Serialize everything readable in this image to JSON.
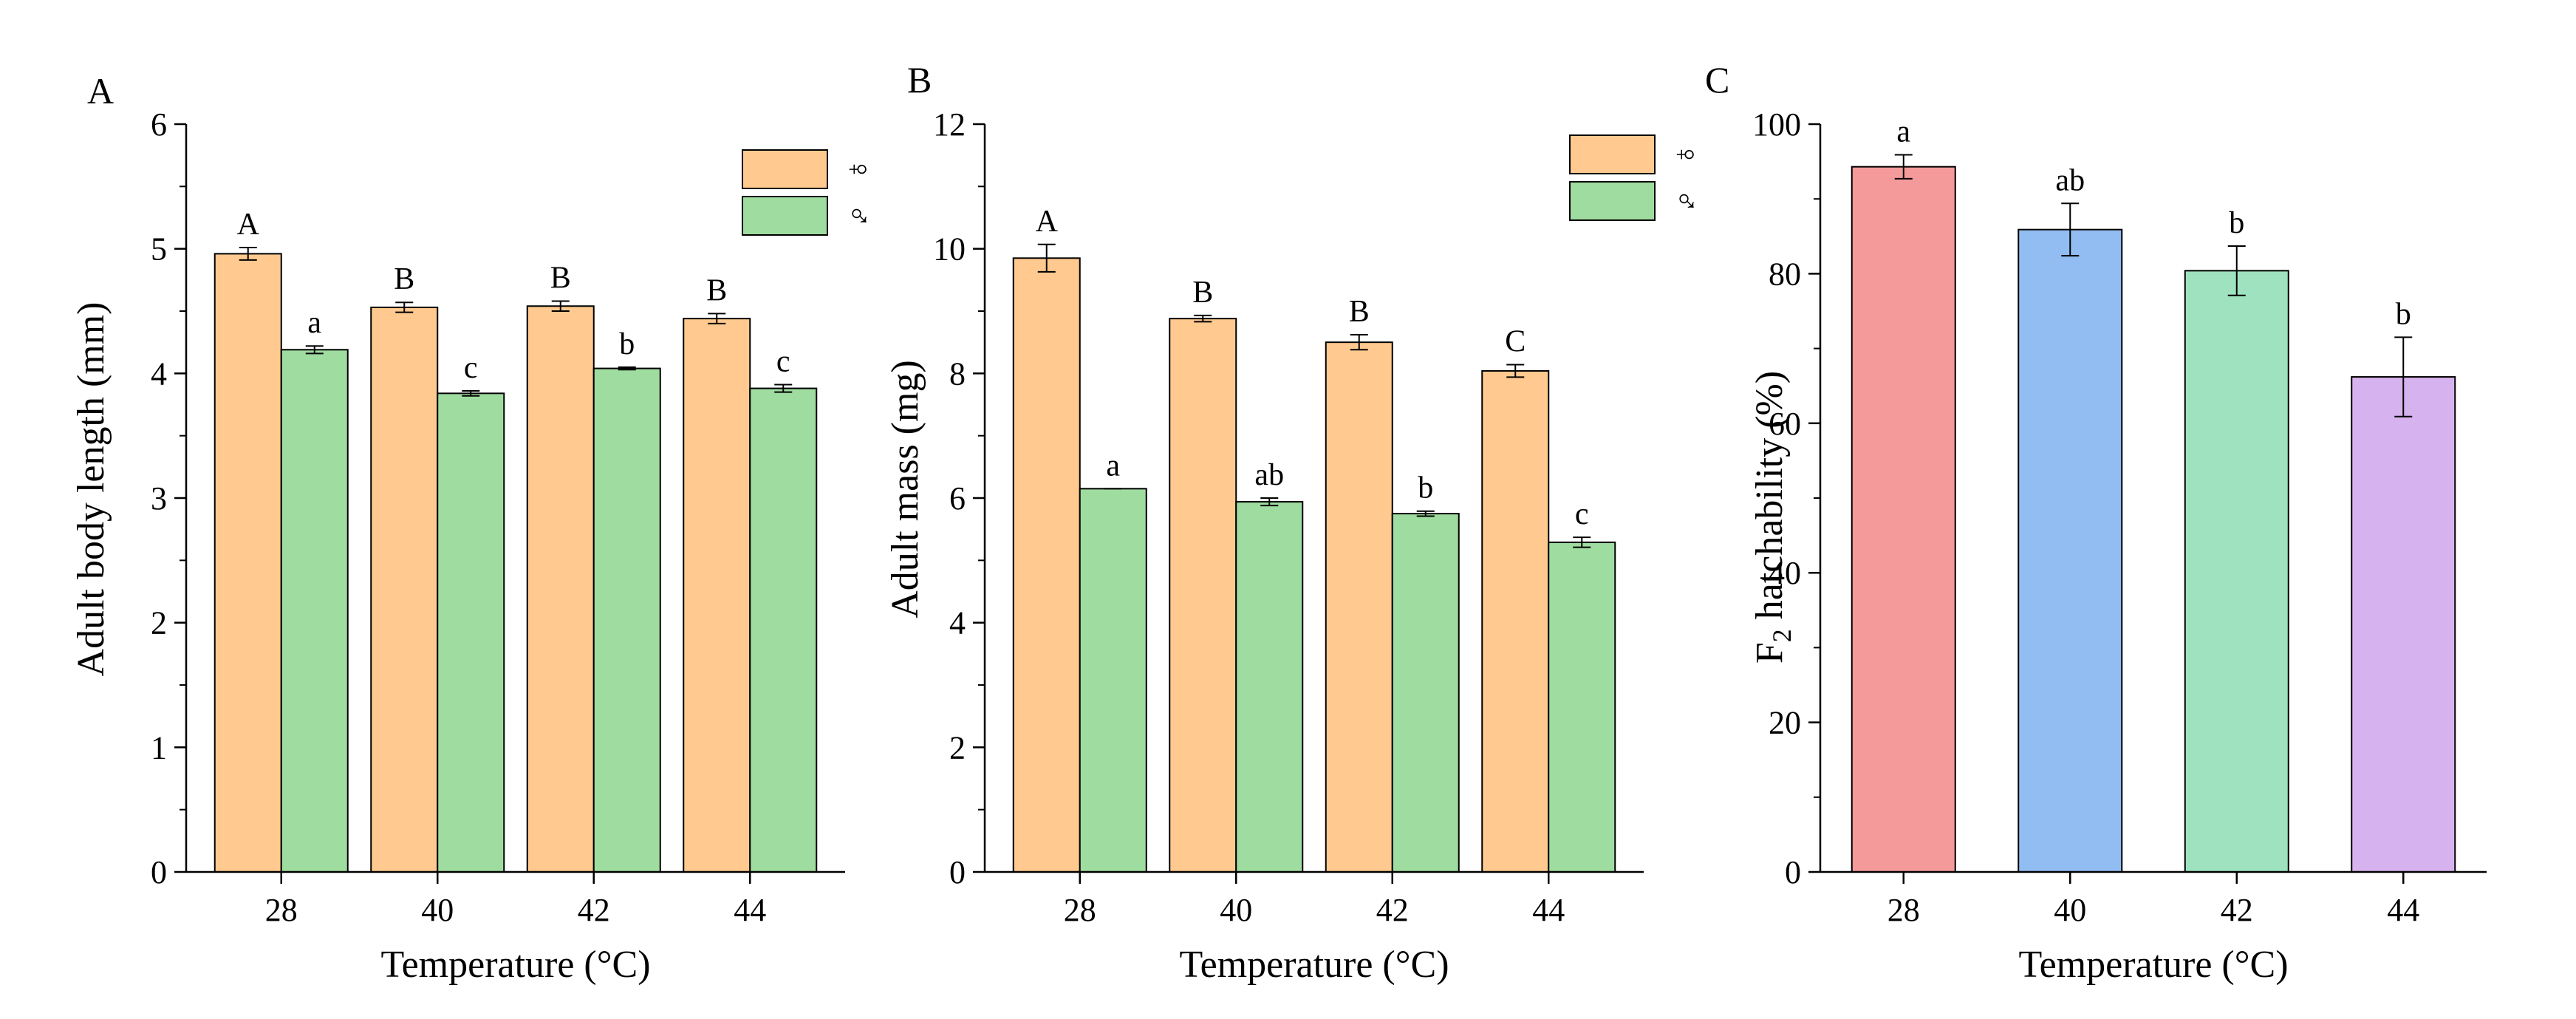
{
  "chart_data": [
    {
      "panel": "A",
      "type": "bar",
      "xlabel": "Temperature (°C)",
      "ylabel": "Adult body length (mm)",
      "ylim": [
        0,
        6
      ],
      "yticks": [
        0,
        1,
        2,
        3,
        4,
        5,
        6
      ],
      "categories": [
        "28",
        "40",
        "42",
        "44"
      ],
      "legend_position": "top-right",
      "series": [
        {
          "name": "♀",
          "color": "#ffc98f",
          "values": [
            4.96,
            4.53,
            4.54,
            4.44
          ],
          "errors": [
            0.05,
            0.04,
            0.04,
            0.04
          ],
          "labels": [
            "A",
            "B",
            "B",
            "B"
          ]
        },
        {
          "name": "♂",
          "color": "#9fdc9f",
          "values": [
            4.19,
            3.84,
            4.04,
            3.88
          ],
          "errors": [
            0.03,
            0.02,
            0.01,
            0.03
          ],
          "labels": [
            "a",
            "c",
            "b",
            "c"
          ]
        }
      ]
    },
    {
      "panel": "B",
      "type": "bar",
      "xlabel": "Temperature (°C)",
      "ylabel": "Adult mass (mg)",
      "ylim": [
        0,
        12
      ],
      "yticks": [
        0,
        2,
        4,
        6,
        8,
        10,
        12
      ],
      "categories": [
        "28",
        "40",
        "42",
        "44"
      ],
      "legend_position": "top-right",
      "series": [
        {
          "name": "♀",
          "color": "#ffc98f",
          "values": [
            9.85,
            8.88,
            8.5,
            8.04
          ],
          "errors": [
            0.22,
            0.05,
            0.12,
            0.1
          ],
          "labels": [
            "A",
            "B",
            "B",
            "C"
          ]
        },
        {
          "name": "♂",
          "color": "#9fdc9f",
          "values": [
            6.15,
            5.94,
            5.75,
            5.29
          ],
          "errors": [
            0.0,
            0.06,
            0.04,
            0.08
          ],
          "labels": [
            "a",
            "ab",
            "b",
            "c"
          ]
        }
      ]
    },
    {
      "panel": "C",
      "type": "bar",
      "xlabel": "Temperature (°C)",
      "ylabel": "F2 hatchability (%)",
      "ylabel_main": "F",
      "ylabel_sub": "2",
      "ylabel_rest": " hatchability (%)",
      "ylim": [
        0,
        100
      ],
      "yticks": [
        0,
        20,
        40,
        60,
        80,
        100
      ],
      "categories": [
        "28",
        "40",
        "42",
        "44"
      ],
      "values": [
        94.3,
        85.9,
        80.4,
        66.2
      ],
      "errors": [
        1.6,
        3.5,
        3.3,
        5.3
      ],
      "labels": [
        "a",
        "ab",
        "b",
        "b"
      ],
      "colors": [
        "#f59a9a",
        "#92bdf2",
        "#9ee2bf",
        "#d6b2ee"
      ]
    }
  ]
}
